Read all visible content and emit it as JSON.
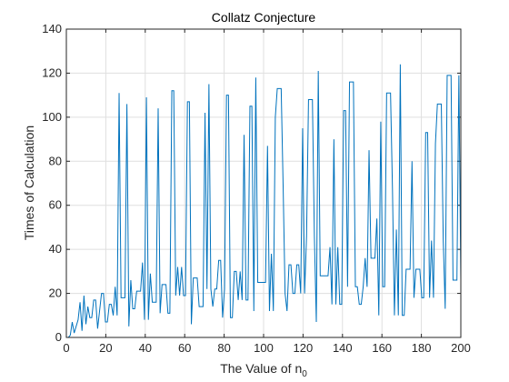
{
  "chart_data": {
    "type": "line",
    "title": "Collatz Conjecture",
    "xlabel": "The Value of n",
    "xlabel_subscript": "0",
    "ylabel": "Times of Calculation",
    "xlim": [
      0,
      200
    ],
    "ylim": [
      0,
      140
    ],
    "xticks": [
      "0",
      "20",
      "40",
      "60",
      "80",
      "100",
      "120",
      "140",
      "160",
      "180",
      "200"
    ],
    "yticks": [
      "0",
      "20",
      "40",
      "60",
      "80",
      "100",
      "120",
      "140"
    ],
    "grid": true,
    "series_color": "#0072BD",
    "x_start": 1,
    "x_end": 200,
    "series": [
      {
        "values": [
          0,
          1,
          7,
          2,
          5,
          8,
          16,
          3,
          19,
          6,
          14,
          9,
          9,
          17,
          17,
          4,
          12,
          20,
          20,
          7,
          7,
          15,
          15,
          10,
          23,
          10,
          111,
          18,
          18,
          18,
          106,
          5,
          26,
          13,
          13,
          21,
          21,
          21,
          34,
          8,
          109,
          8,
          29,
          16,
          16,
          16,
          104,
          11,
          24,
          24,
          24,
          11,
          11,
          112,
          112,
          19,
          32,
          19,
          32,
          19,
          19,
          107,
          107,
          6,
          27,
          27,
          27,
          14,
          14,
          14,
          102,
          22,
          115,
          22,
          14,
          22,
          22,
          35,
          35,
          9,
          22,
          110,
          110,
          9,
          9,
          30,
          30,
          17,
          30,
          17,
          92,
          17,
          17,
          105,
          105,
          12,
          118,
          25,
          25,
          25,
          25,
          25,
          87,
          12,
          38,
          12,
          100,
          113,
          113,
          113,
          69,
          20,
          12,
          33,
          33,
          20,
          20,
          33,
          33,
          20,
          95,
          20,
          46,
          108,
          108,
          108,
          46,
          7,
          121,
          28,
          28,
          28,
          28,
          28,
          41,
          15,
          90,
          15,
          41,
          15,
          15,
          103,
          103,
          23,
          116,
          116,
          116,
          23,
          23,
          15,
          15,
          23,
          36,
          23,
          85,
          36,
          36,
          36,
          54,
          10,
          98,
          23,
          23,
          111,
          111,
          111,
          67,
          10,
          49,
          10,
          124,
          10,
          10,
          31,
          31,
          31,
          80,
          18,
          31,
          31,
          31,
          18,
          18,
          93,
          93,
          18,
          44,
          18,
          88,
          106,
          106,
          106,
          44,
          13,
          119,
          119,
          119,
          26,
          26,
          26,
          119,
          26
        ]
      }
    ]
  }
}
